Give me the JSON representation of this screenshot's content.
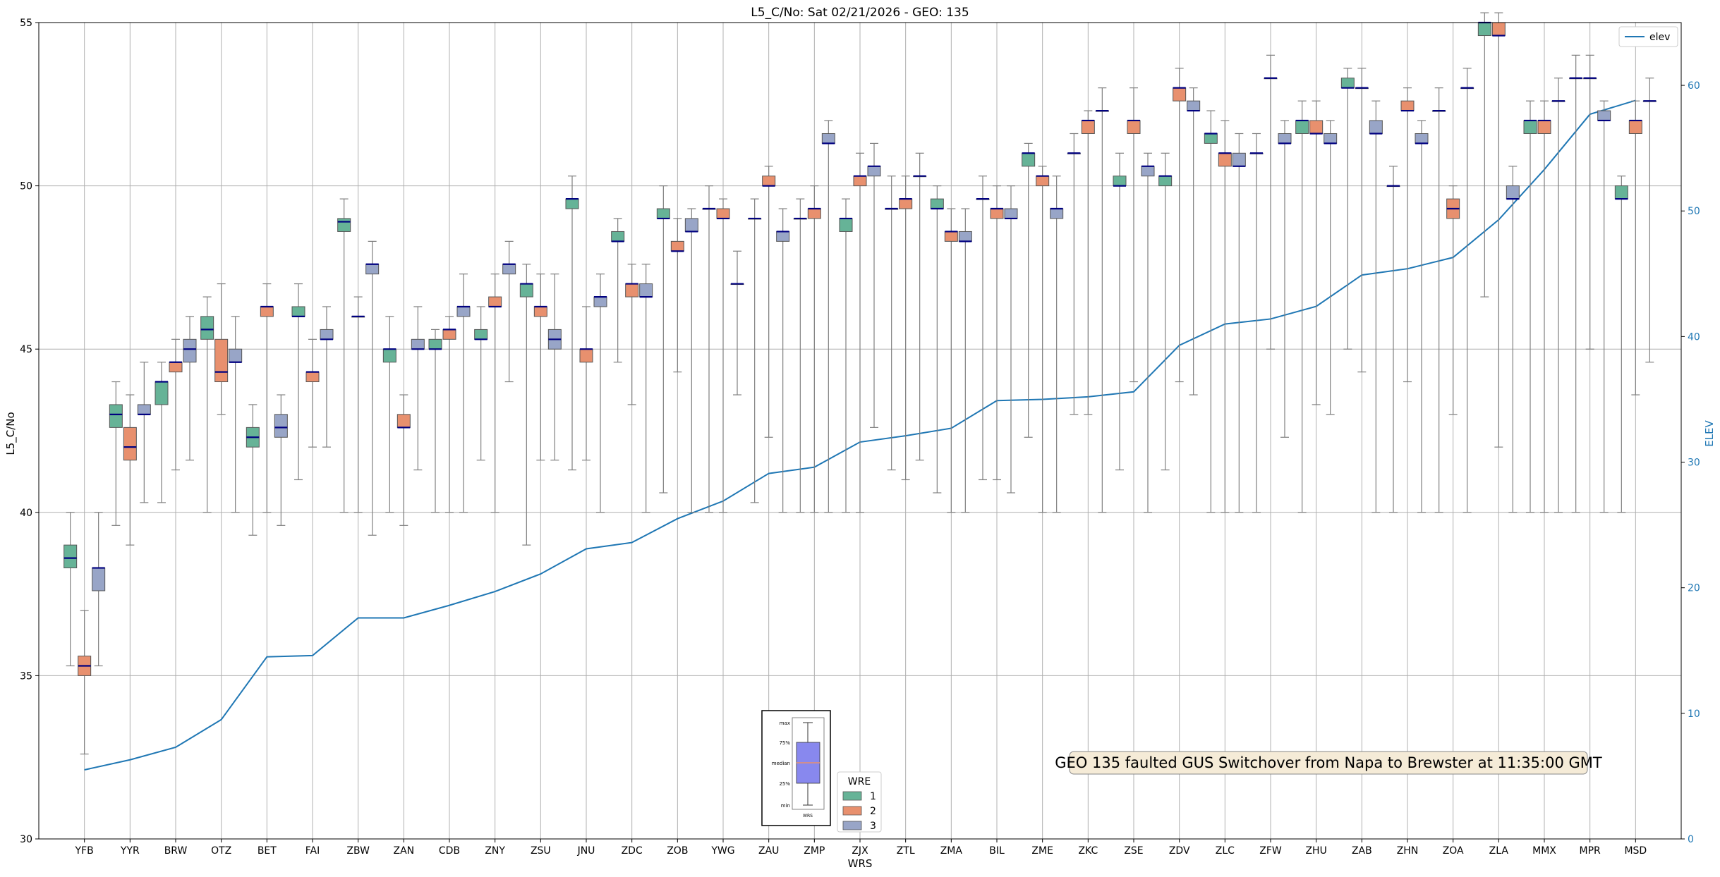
{
  "chart_data": {
    "type": "box",
    "title": "L5_C/No: Sat 02/21/2026 - GEO: 135",
    "xlabel": "WRS",
    "ylabel": "L5_C/No",
    "y2label": "ELEV",
    "ylim": [
      30,
      55
    ],
    "y2lim": [
      0,
      65
    ],
    "yticks": [
      30,
      35,
      40,
      45,
      50,
      55
    ],
    "y2ticks": [
      0,
      10,
      20,
      30,
      40,
      50,
      60
    ],
    "grid": true,
    "categories": [
      "YFB",
      "YYR",
      "BRW",
      "OTZ",
      "BET",
      "FAI",
      "ZBW",
      "ZAN",
      "CDB",
      "ZNY",
      "ZSU",
      "JNU",
      "ZDC",
      "ZOB",
      "YWG",
      "ZAU",
      "ZMP",
      "ZJX",
      "ZTL",
      "ZMA",
      "BIL",
      "ZME",
      "ZKC",
      "ZSE",
      "ZDV",
      "ZLC",
      "ZFW",
      "ZHU",
      "ZAB",
      "ZHN",
      "ZOA",
      "ZLA",
      "MMX",
      "MPR",
      "MSD"
    ],
    "series": [
      {
        "name": "1",
        "color": "#66b397",
        "stats": [
          [
            35.3,
            38.3,
            38.6,
            39.0,
            40.0
          ],
          [
            39.6,
            42.6,
            43.0,
            43.3,
            44.0
          ],
          [
            40.3,
            43.3,
            44.0,
            44.0,
            44.6
          ],
          [
            40.0,
            45.3,
            45.6,
            46.0,
            46.6
          ],
          [
            39.3,
            42.0,
            42.3,
            42.6,
            43.3
          ],
          [
            41.0,
            46.0,
            46.0,
            46.3,
            47.0
          ],
          [
            40.0,
            48.6,
            48.9,
            49.0,
            49.6
          ],
          [
            40.0,
            44.6,
            45.0,
            45.0,
            46.0
          ],
          [
            40.0,
            45.0,
            45.0,
            45.3,
            45.6
          ],
          [
            41.6,
            45.3,
            45.3,
            45.6,
            46.3
          ],
          [
            39.0,
            46.6,
            47.0,
            47.0,
            47.6
          ],
          [
            41.3,
            49.3,
            49.6,
            49.6,
            50.3
          ],
          [
            44.6,
            48.3,
            48.3,
            48.6,
            49.0
          ],
          [
            40.6,
            49.0,
            49.0,
            49.3,
            50.0
          ],
          [
            40.0,
            49.3,
            49.3,
            49.3,
            50.0
          ],
          [
            40.3,
            49.0,
            49.0,
            49.0,
            49.6
          ],
          [
            40.0,
            49.0,
            49.0,
            49.0,
            49.6
          ],
          [
            40.0,
            48.6,
            49.0,
            49.0,
            49.6
          ],
          [
            41.3,
            49.3,
            49.3,
            49.3,
            50.3
          ],
          [
            40.6,
            49.3,
            49.3,
            49.6,
            50.0
          ],
          [
            41.0,
            49.6,
            49.6,
            49.6,
            50.3
          ],
          [
            42.3,
            50.6,
            51.0,
            51.0,
            51.3
          ],
          [
            43.0,
            51.0,
            51.0,
            51.0,
            51.6
          ],
          [
            41.3,
            50.0,
            50.0,
            50.3,
            51.0
          ],
          [
            41.3,
            50.0,
            50.3,
            50.3,
            51.0
          ],
          [
            40.0,
            51.3,
            51.6,
            51.6,
            52.3
          ],
          [
            40.0,
            51.0,
            51.0,
            51.0,
            51.6
          ],
          [
            40.0,
            51.6,
            52.0,
            52.0,
            52.6
          ],
          [
            45.0,
            53.0,
            53.0,
            53.3,
            53.6
          ],
          [
            40.0,
            50.0,
            50.0,
            50.0,
            50.6
          ],
          [
            40.0,
            52.3,
            52.3,
            52.3,
            53.0
          ],
          [
            46.6,
            54.6,
            55.0,
            55.0,
            55.3
          ],
          [
            40.0,
            51.6,
            52.0,
            52.0,
            52.6
          ],
          [
            40.0,
            53.3,
            53.3,
            53.3,
            54.0
          ],
          [
            40.0,
            49.6,
            49.6,
            50.0,
            50.3
          ]
        ]
      },
      {
        "name": "2",
        "color": "#e8906e",
        "stats": [
          [
            32.6,
            35.0,
            35.3,
            35.6,
            37.0
          ],
          [
            39.0,
            41.6,
            42.0,
            42.6,
            43.6
          ],
          [
            41.3,
            44.3,
            44.6,
            44.6,
            45.3
          ],
          [
            43.0,
            44.0,
            44.3,
            45.3,
            47.0
          ],
          [
            40.0,
            46.0,
            46.3,
            46.3,
            47.0
          ],
          [
            42.0,
            44.0,
            44.3,
            44.3,
            45.3
          ],
          [
            40.0,
            46.0,
            46.0,
            46.0,
            46.6
          ],
          [
            39.6,
            42.6,
            42.6,
            43.0,
            43.6
          ],
          [
            40.0,
            45.3,
            45.6,
            45.6,
            46.0
          ],
          [
            40.0,
            46.3,
            46.3,
            46.6,
            47.3
          ],
          [
            41.6,
            46.0,
            46.3,
            46.3,
            47.3
          ],
          [
            41.6,
            44.6,
            45.0,
            45.0,
            46.3
          ],
          [
            43.3,
            46.6,
            47.0,
            47.0,
            47.6
          ],
          [
            44.3,
            48.0,
            48.0,
            48.3,
            49.0
          ],
          [
            40.0,
            49.0,
            49.0,
            49.3,
            49.6
          ],
          [
            42.3,
            50.0,
            50.0,
            50.3,
            50.6
          ],
          [
            40.0,
            49.0,
            49.3,
            49.3,
            50.0
          ],
          [
            40.0,
            50.0,
            50.3,
            50.3,
            51.0
          ],
          [
            41.0,
            49.3,
            49.6,
            49.6,
            50.3
          ],
          [
            40.0,
            48.3,
            48.6,
            48.6,
            49.3
          ],
          [
            41.0,
            49.0,
            49.3,
            49.3,
            50.0
          ],
          [
            40.0,
            50.0,
            50.3,
            50.3,
            50.6
          ],
          [
            43.0,
            51.6,
            52.0,
            52.0,
            52.3
          ],
          [
            44.0,
            51.6,
            52.0,
            52.0,
            53.0
          ],
          [
            44.0,
            52.6,
            53.0,
            53.0,
            53.6
          ],
          [
            40.0,
            50.6,
            51.0,
            51.0,
            52.0
          ],
          [
            45.0,
            53.3,
            53.3,
            53.3,
            54.0
          ],
          [
            43.3,
            51.6,
            51.6,
            52.0,
            52.6
          ],
          [
            44.3,
            53.0,
            53.0,
            53.0,
            53.6
          ],
          [
            44.0,
            52.3,
            52.3,
            52.6,
            53.0
          ],
          [
            43.0,
            49.0,
            49.3,
            49.6,
            50.0
          ],
          [
            42.0,
            54.6,
            54.6,
            55.0,
            55.3
          ],
          [
            40.0,
            51.6,
            52.0,
            52.0,
            52.6
          ],
          [
            45.0,
            53.3,
            53.3,
            53.3,
            54.0
          ],
          [
            43.6,
            51.6,
            52.0,
            52.0,
            52.6
          ]
        ]
      },
      {
        "name": "3",
        "color": "#98a5c7",
        "stats": [
          [
            35.3,
            37.6,
            38.3,
            38.3,
            40.0
          ],
          [
            40.3,
            43.0,
            43.0,
            43.3,
            44.6
          ],
          [
            41.6,
            44.6,
            45.0,
            45.3,
            46.0
          ],
          [
            40.0,
            44.6,
            44.6,
            45.0,
            46.0
          ],
          [
            39.6,
            42.3,
            42.6,
            43.0,
            43.6
          ],
          [
            42.0,
            45.3,
            45.3,
            45.6,
            46.3
          ],
          [
            39.3,
            47.3,
            47.6,
            47.6,
            48.3
          ],
          [
            41.3,
            45.0,
            45.0,
            45.3,
            46.3
          ],
          [
            40.0,
            46.0,
            46.3,
            46.3,
            47.3
          ],
          [
            44.0,
            47.3,
            47.6,
            47.6,
            48.3
          ],
          [
            41.6,
            45.0,
            45.3,
            45.6,
            47.3
          ],
          [
            40.0,
            46.3,
            46.6,
            46.6,
            47.3
          ],
          [
            40.0,
            46.6,
            46.6,
            47.0,
            47.6
          ],
          [
            40.0,
            48.6,
            48.6,
            49.0,
            49.3
          ],
          [
            43.6,
            47.0,
            47.0,
            47.0,
            48.0
          ],
          [
            40.0,
            48.3,
            48.6,
            48.6,
            49.3
          ],
          [
            40.0,
            51.3,
            51.3,
            51.6,
            52.0
          ],
          [
            42.6,
            50.3,
            50.6,
            50.6,
            51.3
          ],
          [
            41.6,
            50.3,
            50.3,
            50.3,
            51.0
          ],
          [
            40.0,
            48.3,
            48.3,
            48.6,
            49.3
          ],
          [
            40.6,
            49.0,
            49.0,
            49.3,
            50.0
          ],
          [
            40.0,
            49.0,
            49.3,
            49.3,
            50.3
          ],
          [
            40.0,
            52.3,
            52.3,
            52.3,
            53.0
          ],
          [
            40.0,
            50.3,
            50.6,
            50.6,
            51.0
          ],
          [
            43.6,
            52.3,
            52.3,
            52.6,
            53.0
          ],
          [
            40.0,
            50.6,
            50.6,
            51.0,
            51.6
          ],
          [
            42.3,
            51.3,
            51.3,
            51.6,
            52.0
          ],
          [
            43.0,
            51.3,
            51.3,
            51.6,
            52.0
          ],
          [
            40.0,
            51.6,
            51.6,
            52.0,
            52.6
          ],
          [
            40.0,
            51.3,
            51.3,
            51.6,
            52.0
          ],
          [
            40.0,
            53.0,
            53.0,
            53.0,
            53.6
          ],
          [
            40.0,
            49.6,
            49.6,
            50.0,
            50.6
          ],
          [
            40.0,
            52.6,
            52.6,
            52.6,
            53.3
          ],
          [
            40.0,
            52.0,
            52.0,
            52.3,
            52.6
          ],
          [
            44.6,
            52.6,
            52.6,
            52.6,
            53.3
          ]
        ]
      }
    ],
    "elev": {
      "label": "elev",
      "color": "#1f77b4",
      "values": [
        5.5,
        6.3,
        7.3,
        9.5,
        14.5,
        14.6,
        17.6,
        17.6,
        18.6,
        19.7,
        21.1,
        23.1,
        23.6,
        25.5,
        26.9,
        29.1,
        29.6,
        31.6,
        32.1,
        32.7,
        34.9,
        35.0,
        35.2,
        35.6,
        39.3,
        41.0,
        41.4,
        42.4,
        44.9,
        45.4,
        46.3,
        49.3,
        53.3,
        57.7,
        58.8
      ]
    },
    "legend": {
      "title": "WRE",
      "entries": [
        "1",
        "2",
        "3"
      ],
      "placement": "bottom-center"
    },
    "elev_legend_placement": "top-right",
    "inset": {
      "placement": "bottom-center",
      "labels": [
        "max",
        "75%",
        "median",
        "25%",
        "min"
      ],
      "xlabel": "WRS",
      "fill_color": "#8888ee"
    },
    "annotation": {
      "text": "GEO 135 faulted GUS Switchover from Napa to Brewster at 11:35:00 GMT",
      "placement": "lower-right"
    },
    "colors": {
      "median": "#000080",
      "whisker": "#7f7f7f",
      "grid": "#b0b0b0",
      "annotation_bg": "#f5ebd7"
    }
  }
}
